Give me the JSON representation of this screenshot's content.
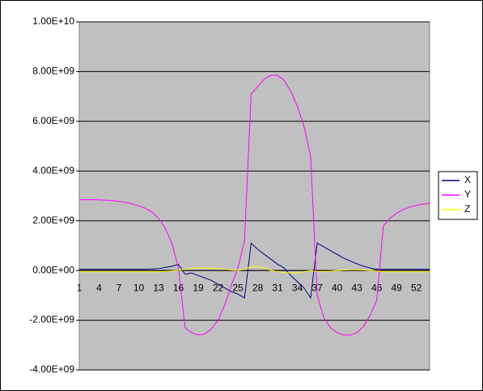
{
  "chart_data": {
    "type": "line",
    "categories": [
      "1",
      null,
      null,
      "4",
      null,
      null,
      "7",
      null,
      null,
      "10",
      null,
      null,
      "13",
      null,
      null,
      "16",
      null,
      null,
      "19",
      null,
      null,
      "22",
      null,
      null,
      "25",
      null,
      null,
      "28",
      null,
      null,
      "31",
      null,
      null,
      "34",
      null,
      null,
      "37",
      null,
      null,
      "40",
      null,
      null,
      "43",
      null,
      null,
      "46",
      null,
      null,
      "49",
      null,
      null,
      "52",
      null,
      null
    ],
    "series": [
      {
        "name": "X",
        "color": "#000080",
        "values": [
          50000000.0,
          50000000.0,
          50000000.0,
          50000000.0,
          50000000.0,
          50000000.0,
          50000000.0,
          50000000.0,
          50000000.0,
          50000000.0,
          50000000.0,
          60000000.0,
          80000000.0,
          120000000.0,
          170000000.0,
          250000000.0,
          -150000000.0,
          -100000000.0,
          -200000000.0,
          -300000000.0,
          -400000000.0,
          -550000000.0,
          -700000000.0,
          -850000000.0,
          -950000000.0,
          -1100000000.0,
          1100000000.0,
          850000000.0,
          650000000.0,
          450000000.0,
          250000000.0,
          100000000.0,
          -200000000.0,
          -450000000.0,
          -700000000.0,
          -1100000000.0,
          1100000000.0,
          950000000.0,
          800000000.0,
          650000000.0,
          500000000.0,
          380000000.0,
          270000000.0,
          170000000.0,
          100000000.0,
          50000000.0,
          50000000.0,
          50000000.0,
          50000000.0,
          50000000.0,
          50000000.0,
          50000000.0,
          50000000.0,
          50000000.0
        ]
      },
      {
        "name": "Y",
        "color": "#ff00ff",
        "values": [
          2850000000.0,
          2850000000.0,
          2850000000.0,
          2840000000.0,
          2830000000.0,
          2810000000.0,
          2780000000.0,
          2740000000.0,
          2680000000.0,
          2600000000.0,
          2500000000.0,
          2350000000.0,
          2100000000.0,
          1700000000.0,
          1100000000.0,
          100000000.0,
          -2300000000.0,
          -2500000000.0,
          -2600000000.0,
          -2550000000.0,
          -2350000000.0,
          -2000000000.0,
          -1400000000.0,
          -600000000.0,
          100000000.0,
          1200000000.0,
          7100000000.0,
          7400000000.0,
          7700000000.0,
          7850000000.0,
          7850000000.0,
          7650000000.0,
          7200000000.0,
          6600000000.0,
          5800000000.0,
          4600000000.0,
          -1000000000.0,
          -1900000000.0,
          -2300000000.0,
          -2500000000.0,
          -2600000000.0,
          -2600000000.0,
          -2500000000.0,
          -2250000000.0,
          -1800000000.0,
          -1200000000.0,
          1800000000.0,
          2100000000.0,
          2300000000.0,
          2450000000.0,
          2550000000.0,
          2620000000.0,
          2670000000.0,
          2700000000.0
        ]
      },
      {
        "name": "Z",
        "color": "#ffff00",
        "values": [
          -50000000.0,
          -50000000.0,
          -50000000.0,
          -50000000.0,
          -50000000.0,
          -50000000.0,
          -50000000.0,
          -50000000.0,
          -50000000.0,
          -50000000.0,
          -50000000.0,
          -50000000.0,
          -50000000.0,
          -40000000.0,
          -20000000.0,
          0.0,
          50000000.0,
          80000000.0,
          100000000.0,
          100000000.0,
          100000000.0,
          80000000.0,
          50000000.0,
          20000000.0,
          0.0,
          50000000.0,
          150000000.0,
          150000000.0,
          100000000.0,
          0.0,
          -50000000.0,
          -80000000.0,
          -100000000.0,
          -100000000.0,
          -50000000.0,
          0.0,
          -50000000.0,
          -50000000.0,
          -30000000.0,
          0.0,
          20000000.0,
          30000000.0,
          30000000.0,
          20000000.0,
          0.0,
          -30000000.0,
          -50000000.0,
          -50000000.0,
          -50000000.0,
          -50000000.0,
          -50000000.0,
          -50000000.0,
          -50000000.0,
          -50000000.0
        ]
      }
    ],
    "ylim": [
      -4000000000.0,
      10000000000.0
    ],
    "yticks": [
      {
        "value": -4000000000.0,
        "label": "-4.00E+09"
      },
      {
        "value": -2000000000.0,
        "label": "-2.00E+09"
      },
      {
        "value": 0,
        "label": "0.00E+00"
      },
      {
        "value": 2000000000.0,
        "label": "2.00E+09"
      },
      {
        "value": 4000000000.0,
        "label": "4.00E+09"
      },
      {
        "value": 6000000000.0,
        "label": "6.00E+09"
      },
      {
        "value": 8000000000.0,
        "label": "8.00E+09"
      },
      {
        "value": 10000000000.0,
        "label": "1.00E+10"
      }
    ],
    "grid": true,
    "legend": "right"
  }
}
